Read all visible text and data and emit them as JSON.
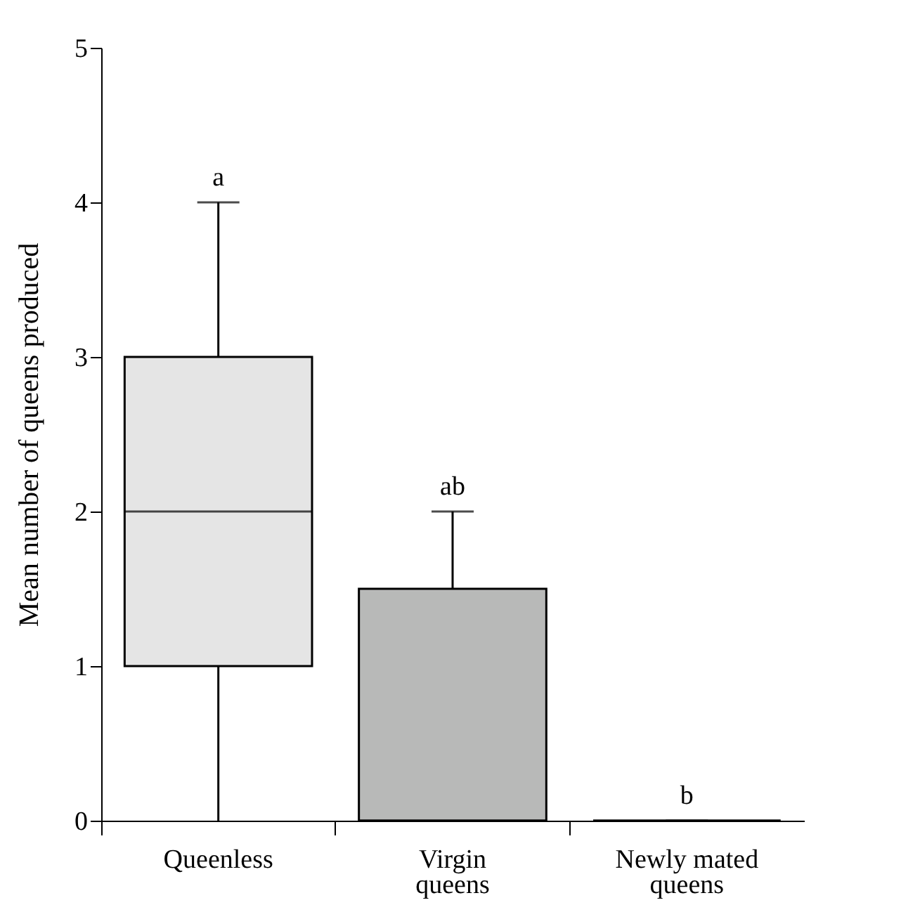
{
  "chart_data": {
    "type": "box",
    "ylabel": "Mean number of queens produced",
    "categories": [
      "Queenless",
      "Virgin queens",
      "Newly mated queens"
    ],
    "colors": [
      "#e5e5e5",
      "#b8b9b8",
      "#000000"
    ],
    "boxes": [
      {
        "low": 0,
        "q1": 1,
        "median": 2,
        "q3": 3,
        "high": 4
      },
      {
        "low": 0,
        "q1": 0,
        "median": 0,
        "q3": 1.5,
        "high": 2
      },
      {
        "low": 0,
        "q1": 0,
        "median": 0,
        "q3": 0,
        "high": 0
      }
    ],
    "ylim": [
      0,
      5
    ],
    "yticks": [
      0,
      1,
      2,
      3,
      4,
      5
    ],
    "grid": false,
    "annotations": [
      {
        "text": "a",
        "x": "Queenless",
        "y": 4
      },
      {
        "text": "ab",
        "x": "Virgin queens",
        "y": 2
      },
      {
        "text": "b",
        "x": "Newly mated queens",
        "y": 0
      }
    ]
  }
}
